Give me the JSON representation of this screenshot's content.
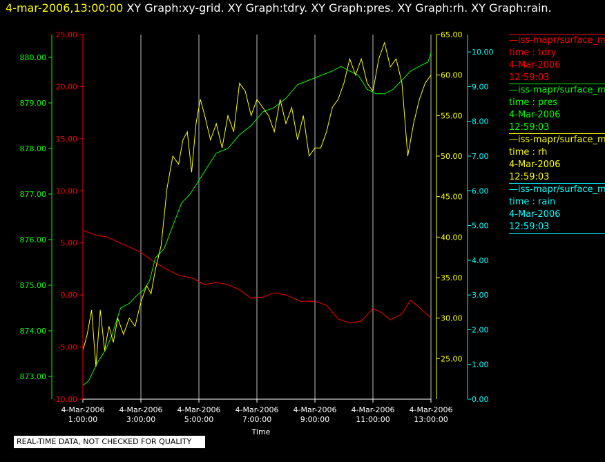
{
  "header": {
    "datetime": "4-mar-2006,13:00:00",
    "titles": "XY Graph:xy-grid.  XY Graph:tdry.  XY Graph:pres.  XY Graph:rh.  XY Graph:rain."
  },
  "colors": {
    "tdry": "#ff0000",
    "pres": "#00ff00",
    "rh": "#ffff00",
    "rain": "#00ffff",
    "grid": "#c0c0c0",
    "axis": "#ffffff"
  },
  "legend": [
    {
      "name": "—iss-mapr/surface_m",
      "label": "time : tdry",
      "date": "4-Mar-2006",
      "time": "12:59:03",
      "color": "#ff0000"
    },
    {
      "name": "—iss-mapr/surface_m",
      "label": "time : pres",
      "date": "4-Mar-2006",
      "time": "12:59:03",
      "color": "#00ff00"
    },
    {
      "name": "—iss-mapr/surface_m",
      "label": "time : rh",
      "date": "4-Mar-2006",
      "time": "12:59:03",
      "color": "#ffff00"
    },
    {
      "name": "—iss-mapr/surface_m",
      "label": "time : rain",
      "date": "4-Mar-2006",
      "time": "12:59:03",
      "color": "#00ffff"
    }
  ],
  "note": "REAL-TIME DATA, NOT CHECKED FOR QUALITY",
  "chart_data": {
    "type": "line",
    "xlabel": "Time",
    "xlim": [
      1.0,
      13.0
    ],
    "xticks": [
      {
        "x": 1,
        "date": "4-Mar-2006",
        "time": "1:00:00"
      },
      {
        "x": 3,
        "date": "4-Mar-2006",
        "time": "3:00:00"
      },
      {
        "x": 5,
        "date": "4-Mar-2006",
        "time": "5:00:00"
      },
      {
        "x": 7,
        "date": "4-Mar-2006",
        "time": "7:00:00"
      },
      {
        "x": 9,
        "date": "4-Mar-2006",
        "time": "9:00:00"
      },
      {
        "x": 11,
        "date": "4-Mar-2006",
        "time": "11:00:00"
      },
      {
        "x": 13,
        "date": "4-Mar-2006",
        "time": "13:00:00"
      }
    ],
    "grid": true,
    "axes": {
      "tdry": {
        "ylim": [
          -10,
          25
        ],
        "ticks": [
          "-10.00",
          "-5.00",
          "0.00",
          "5.00",
          "10.00",
          "15.00",
          "20.00",
          "25.00"
        ],
        "side": "left"
      },
      "pres": {
        "ylim": [
          872.5,
          880.5
        ],
        "ticks": [
          "873.00",
          "874.00",
          "875.00",
          "876.00",
          "877.00",
          "878.00",
          "879.00",
          "880.00"
        ],
        "side": "left"
      },
      "rh": {
        "ylim": [
          20,
          65
        ],
        "ticks": [
          "25.00",
          "30.00",
          "35.00",
          "40.00",
          "45.00",
          "50.00",
          "55.00",
          "60.00",
          "65.00"
        ],
        "side": "right"
      },
      "rain": {
        "ylim": [
          0,
          10.5
        ],
        "ticks": [
          "0.00",
          "1.00",
          "2.00",
          "3.00",
          "4.00",
          "5.00",
          "6.00",
          "7.00",
          "8.00",
          "9.00",
          "10.00"
        ],
        "side": "right"
      }
    },
    "series": [
      {
        "key": "tdry",
        "x": [
          1.0,
          1.5,
          1.8,
          2.2,
          2.6,
          3.0,
          3.4,
          3.8,
          4.3,
          4.8,
          5.2,
          5.6,
          6.0,
          6.4,
          6.8,
          7.2,
          7.6,
          8.0,
          8.5,
          9.0,
          9.4,
          9.8,
          10.2,
          10.6,
          11.0,
          11.3,
          11.6,
          12.0,
          12.3,
          12.6,
          13.0
        ],
        "y": [
          6.2,
          5.7,
          5.6,
          5.1,
          4.6,
          4.1,
          3.3,
          2.6,
          1.9,
          1.6,
          1.0,
          1.2,
          1.0,
          0.5,
          -0.3,
          -0.2,
          0.2,
          0.0,
          -0.6,
          -0.6,
          -1.0,
          -2.3,
          -2.7,
          -2.5,
          -1.3,
          -1.7,
          -2.4,
          -1.8,
          -0.5,
          -1.2,
          -2.2
        ]
      },
      {
        "key": "pres",
        "x": [
          1.0,
          1.2,
          1.5,
          1.8,
          2.0,
          2.3,
          2.6,
          2.9,
          3.1,
          3.3,
          3.5,
          3.8,
          4.1,
          4.4,
          4.7,
          5.0,
          5.3,
          5.6,
          6.0,
          6.4,
          6.8,
          7.2,
          7.6,
          8.0,
          8.4,
          8.8,
          9.2,
          9.6,
          9.9,
          10.2,
          10.5,
          10.8,
          11.1,
          11.4,
          11.7,
          12.0,
          12.3,
          12.6,
          12.9,
          13.0
        ],
        "y": [
          872.8,
          872.9,
          873.3,
          873.6,
          873.9,
          874.5,
          874.6,
          874.8,
          874.9,
          875.1,
          875.6,
          875.8,
          876.3,
          876.8,
          877.0,
          877.3,
          877.6,
          877.9,
          878.0,
          878.3,
          878.5,
          878.8,
          878.9,
          879.1,
          879.4,
          879.5,
          879.6,
          879.7,
          879.8,
          879.7,
          879.6,
          879.3,
          879.2,
          879.2,
          879.3,
          879.5,
          879.7,
          879.8,
          879.9,
          880.1
        ]
      },
      {
        "key": "rh",
        "x": [
          1.0,
          1.15,
          1.3,
          1.45,
          1.6,
          1.75,
          1.9,
          2.05,
          2.2,
          2.4,
          2.6,
          2.8,
          3.0,
          3.2,
          3.35,
          3.5,
          3.7,
          3.9,
          4.1,
          4.3,
          4.45,
          4.6,
          4.75,
          4.9,
          5.05,
          5.2,
          5.4,
          5.6,
          5.8,
          6.0,
          6.2,
          6.4,
          6.6,
          6.8,
          7.0,
          7.2,
          7.4,
          7.6,
          7.8,
          8.0,
          8.2,
          8.4,
          8.6,
          8.8,
          9.0,
          9.2,
          9.4,
          9.6,
          9.8,
          10.0,
          10.2,
          10.4,
          10.6,
          10.8,
          11.0,
          11.2,
          11.4,
          11.6,
          11.8,
          12.0,
          12.2,
          12.4,
          12.6,
          12.8,
          13.0
        ],
        "y": [
          26,
          28,
          31,
          24,
          31,
          26,
          29,
          27,
          30,
          28,
          30,
          29,
          32,
          34,
          33,
          36,
          39,
          46,
          50,
          49,
          52,
          53,
          48,
          54,
          57,
          55,
          52,
          54,
          51,
          55,
          53,
          59,
          58,
          55,
          57,
          56,
          55,
          53,
          57,
          54,
          56,
          52,
          55,
          50,
          51,
          51,
          53,
          56,
          57,
          59,
          62,
          60,
          62,
          59,
          58,
          62,
          64,
          61,
          62,
          59,
          50,
          54,
          57,
          59,
          60
        ]
      },
      {
        "key": "rain",
        "x": [
          1.0,
          13.0
        ],
        "y": [
          0.0,
          0.0
        ]
      }
    ]
  }
}
